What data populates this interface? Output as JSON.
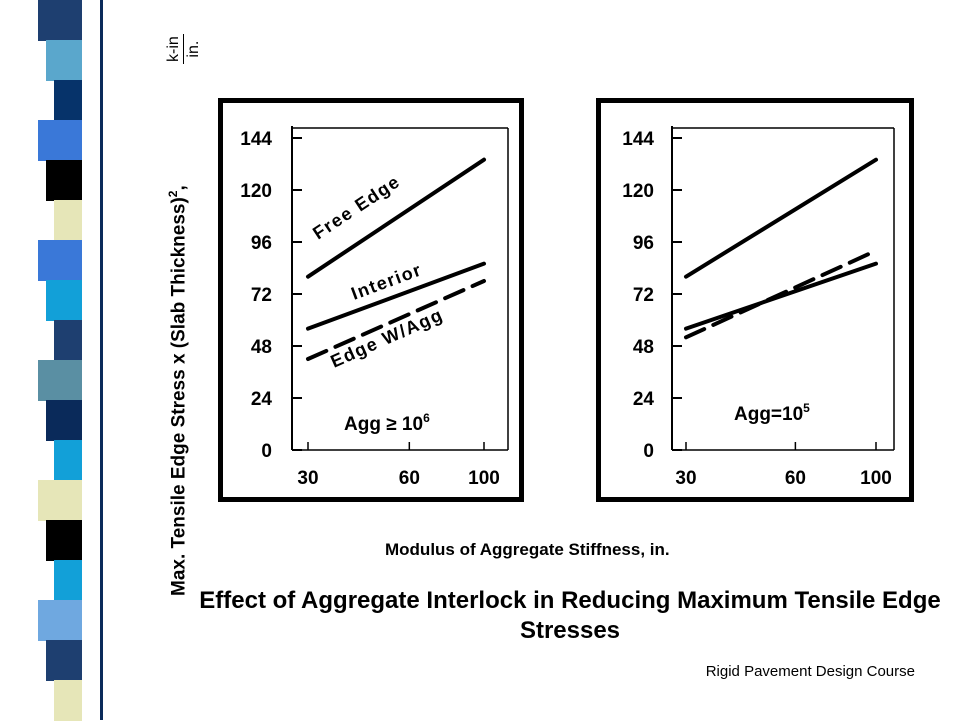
{
  "theme": {
    "stripes": [
      "#1e3f70",
      "#5aa7cc",
      "#06336a",
      "#3a78d8",
      "#000000",
      "#e6e6b8",
      "#3a78d8",
      "#12a0d8",
      "#1e3f70",
      "#5a8fa3",
      "#0a2a5a",
      "#12a0d8",
      "#e6e6b8",
      "#000000",
      "#12a0d8",
      "#6fa8e0",
      "#1e3f70",
      "#e6e6b8"
    ],
    "accent": "#000000"
  },
  "slide": {
    "ylabel": "Max. Tensile Edge Stress x (Slab Thickness)",
    "ylabel_sup": "2",
    "ylabel_comma": ",",
    "unit_numerator": "k-in",
    "unit_denominator": "in.",
    "xlabel": "Modulus of Aggregate Stiffness, in.",
    "title": "Effect of Aggregate Interlock in Reducing Maximum Tensile Edge Stresses",
    "footer": "Rigid Pavement Design Course"
  },
  "chart_data": [
    {
      "type": "line",
      "xlabel": "Modulus of Aggregate Stiffness, in.",
      "ylabel": "Max. Tensile Edge Stress x (Slab Thickness)2, k-in/in.",
      "x_ticks": [
        30,
        60,
        100
      ],
      "y_ticks": [
        0,
        24,
        48,
        72,
        96,
        120,
        144
      ],
      "ylim": [
        0,
        144
      ],
      "annotation": "Agg ≥ 10",
      "annotation_sup": "6",
      "series": [
        {
          "name": "Free Edge",
          "style": "solid",
          "points": [
            [
              30,
              80
            ],
            [
              100,
              134
            ]
          ]
        },
        {
          "name": "Interior",
          "style": "solid",
          "points": [
            [
              30,
              56
            ],
            [
              100,
              86
            ]
          ]
        },
        {
          "name": "Edge W/Agg",
          "style": "dashed",
          "points": [
            [
              30,
              42
            ],
            [
              100,
              78
            ]
          ]
        }
      ]
    },
    {
      "type": "line",
      "xlabel": "Modulus of Aggregate Stiffness, in.",
      "ylabel": "Max. Tensile Edge Stress x (Slab Thickness)2, k-in/in.",
      "x_ticks": [
        30,
        60,
        100
      ],
      "y_ticks": [
        0,
        24,
        48,
        72,
        96,
        120,
        144
      ],
      "ylim": [
        0,
        144
      ],
      "annotation": "Agg=10",
      "annotation_sup": "5",
      "series": [
        {
          "name": "",
          "style": "solid",
          "points": [
            [
              30,
              80
            ],
            [
              100,
              134
            ]
          ]
        },
        {
          "name": "",
          "style": "solid",
          "points": [
            [
              30,
              56
            ],
            [
              100,
              86
            ]
          ]
        },
        {
          "name": "",
          "style": "dashed",
          "points": [
            [
              30,
              52
            ],
            [
              100,
              92
            ]
          ]
        }
      ]
    }
  ]
}
